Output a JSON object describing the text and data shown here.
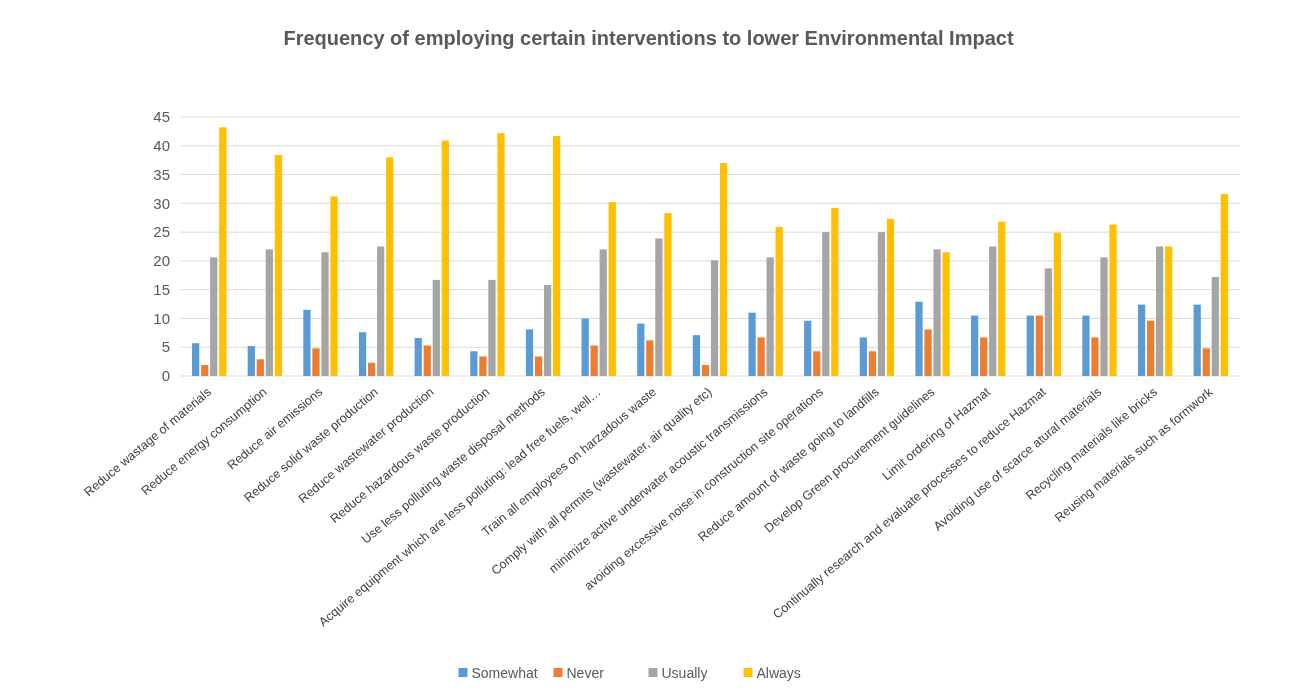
{
  "chart_data": {
    "type": "bar",
    "title": "Frequency of employing certain interventions to lower Environmental Impact",
    "categories": [
      "Reduce wastage of materials",
      "Reduce energy consumption",
      "Reduce air emissions",
      "Reduce solid waste production",
      "Reduce wastewater production",
      "Reduce hazardous waste production",
      "Use less polluting waste disposal methods",
      "Acquire equipment which are less polluting: lead free fuels, well…",
      "Train all employees on harzadous waste",
      "Comply with all permits (wastewater, air quality etc)",
      "minimize active underwater acoustic transmissions",
      "avoiding excessive noise in construction site operations",
      "Reduce amount of waste going to landfills",
      "Develop Green procurement guidelines",
      "Limit ordering of Hazmat",
      "Continually research and evaluate processes to reduce Hazmat",
      "Avoiding use of scarce atural materials",
      "Recycling materials like bricks",
      "Reusing materials such as formwork"
    ],
    "series": [
      {
        "name": "Somewhat",
        "color": "#5b9bd5",
        "values": [
          5.7,
          5.2,
          11.5,
          7.6,
          6.6,
          4.3,
          8.1,
          10,
          9.1,
          7.1,
          11,
          9.6,
          6.7,
          12.9,
          10.5,
          10.5,
          10.5,
          12.4,
          12.4
        ]
      },
      {
        "name": "Never",
        "color": "#ed7d31",
        "values": [
          1.9,
          2.9,
          4.8,
          2.3,
          5.3,
          3.4,
          3.4,
          5.3,
          6.2,
          1.9,
          6.7,
          4.3,
          4.3,
          8.1,
          6.7,
          10.5,
          6.7,
          9.6,
          4.8
        ]
      },
      {
        "name": "Usually",
        "color": "#a5a5a5",
        "values": [
          20.6,
          22,
          21.5,
          22.5,
          16.7,
          16.7,
          15.8,
          22,
          23.9,
          20.1,
          20.6,
          25,
          25,
          22,
          22.5,
          18.7,
          20.6,
          22.5,
          17.2
        ]
      },
      {
        "name": "Always",
        "color": "#ffc000",
        "values": [
          43.2,
          38.4,
          31.2,
          38,
          40.9,
          42.2,
          41.7,
          30.2,
          28.3,
          37,
          25.9,
          29.2,
          27.3,
          21.5,
          26.8,
          24.9,
          26.3,
          22.5,
          31.6
        ]
      }
    ],
    "ylim": [
      0,
      45
    ],
    "yticks": [
      0,
      5,
      10,
      15,
      20,
      25,
      30,
      35,
      40,
      45
    ],
    "grid": "y",
    "legend": "bottom"
  }
}
